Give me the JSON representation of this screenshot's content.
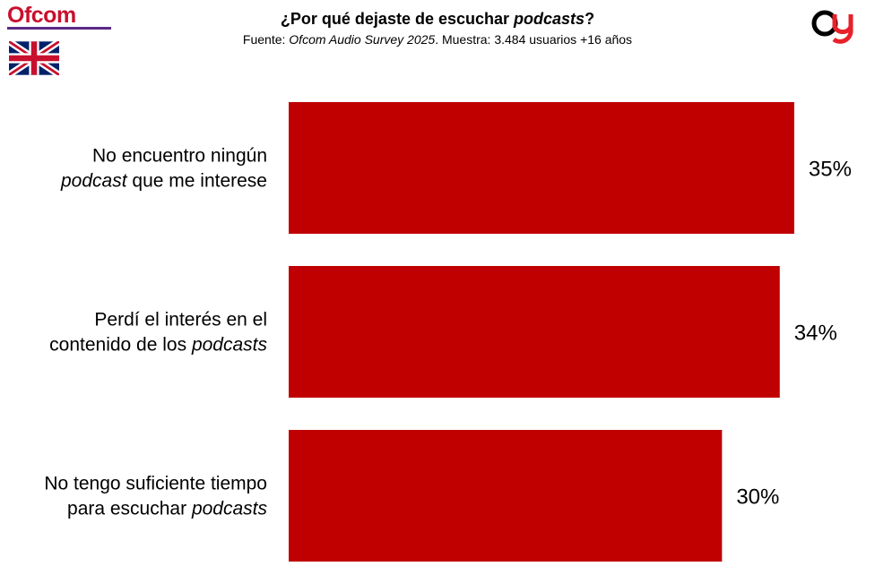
{
  "header": {
    "title_prefix": "¿Por qué dejaste de escuchar ",
    "title_italic": "podcasts",
    "title_suffix": "?",
    "subtitle_prefix": "Fuente: ",
    "subtitle_italic": "Ofcom Audio Survey 2025",
    "subtitle_suffix": ". Muestra: 3.484 usuarios +16 años"
  },
  "logos": {
    "ofcom_text": "Ofcom",
    "ofcom_color": "#c8102e",
    "flag_icon": "uk-flag-icon",
    "brand_icon": "brand-logo-icon"
  },
  "chart_data": {
    "type": "bar",
    "orientation": "horizontal",
    "bar_color": "#c00000",
    "xlim": [
      0,
      36
    ],
    "grid": false,
    "legend": "none",
    "categories": [
      {
        "line1": [
          {
            "t": "No encuentro ningún",
            "i": false
          }
        ],
        "line2": [
          {
            "t": "podcast",
            "i": true
          },
          {
            "t": " que me interese",
            "i": false
          }
        ]
      },
      {
        "line1": [
          {
            "t": "Perdí el interés en el",
            "i": false
          }
        ],
        "line2": [
          {
            "t": "contenido de los ",
            "i": false
          },
          {
            "t": "podcasts",
            "i": true
          }
        ]
      },
      {
        "line1": [
          {
            "t": "No tengo suficiente tiempo",
            "i": false
          }
        ],
        "line2": [
          {
            "t": "para escuchar ",
            "i": false
          },
          {
            "t": "podcasts",
            "i": true
          }
        ]
      }
    ],
    "values": [
      35,
      34,
      30
    ],
    "value_labels": [
      "35%",
      "34%",
      "30%"
    ]
  }
}
